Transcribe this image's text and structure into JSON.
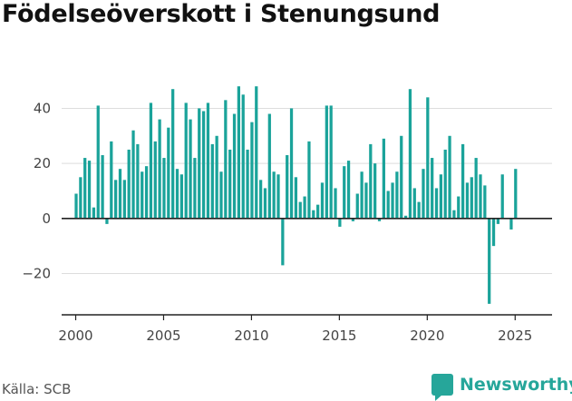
{
  "title": "Födelseöverskott i Stenungsund",
  "source": "Källa: SCB",
  "brand": {
    "name": "Newsworthy",
    "icon": "newsworthy-logo-icon"
  },
  "colors": {
    "bar": "#1aa39a",
    "grid": "#dddddd",
    "axis": "#222222"
  },
  "chart_data": {
    "type": "bar",
    "x_unit": "quarter",
    "title": "Födelseöverskott i Stenungsund",
    "xlabel": "",
    "ylabel": "",
    "ylim": [
      -35,
      53
    ],
    "xlim": [
      1999.2,
      2027.1
    ],
    "grid": true,
    "y_ticks": [
      -20,
      0,
      20,
      40
    ],
    "x_ticks": [
      2000,
      2005,
      2010,
      2015,
      2020,
      2025
    ],
    "categories": [
      "2000 K1",
      "2000 K2",
      "2000 K3",
      "2000 K4",
      "2001 K1",
      "2001 K2",
      "2001 K3",
      "2001 K4",
      "2002 K1",
      "2002 K2",
      "2002 K3",
      "2002 K4",
      "2003 K1",
      "2003 K2",
      "2003 K3",
      "2003 K4",
      "2004 K1",
      "2004 K2",
      "2004 K3",
      "2004 K4",
      "2005 K1",
      "2005 K2",
      "2005 K3",
      "2005 K4",
      "2006 K1",
      "2006 K2",
      "2006 K3",
      "2006 K4",
      "2007 K1",
      "2007 K2",
      "2007 K3",
      "2007 K4",
      "2008 K1",
      "2008 K2",
      "2008 K3",
      "2008 K4",
      "2009 K1",
      "2009 K2",
      "2009 K3",
      "2009 K4",
      "2010 K1",
      "2010 K2",
      "2010 K3",
      "2010 K4",
      "2011 K1",
      "2011 K2",
      "2011 K3",
      "2011 K4",
      "2012 K1",
      "2012 K2",
      "2012 K3",
      "2012 K4",
      "2013 K1",
      "2013 K2",
      "2013 K3",
      "2013 K4",
      "2014 K1",
      "2014 K2",
      "2014 K3",
      "2014 K4",
      "2015 K1",
      "2015 K2",
      "2015 K3",
      "2015 K4",
      "2016 K1",
      "2016 K2",
      "2016 K3",
      "2016 K4",
      "2017 K1",
      "2017 K2",
      "2017 K3",
      "2017 K4",
      "2018 K1",
      "2018 K2",
      "2018 K3",
      "2018 K4",
      "2019 K1",
      "2019 K2",
      "2019 K3",
      "2019 K4",
      "2020 K1",
      "2020 K2",
      "2020 K3",
      "2020 K4",
      "2021 K1",
      "2021 K2",
      "2021 K3",
      "2021 K4",
      "2022 K1",
      "2022 K2",
      "2022 K3",
      "2022 K4",
      "2023 K1",
      "2023 K2",
      "2023 K3",
      "2023 K4",
      "2024 K1",
      "2024 K2",
      "2024 K3",
      "2024 K4",
      "2025 K1",
      "2025 K2"
    ],
    "values": [
      9,
      15,
      22,
      21,
      4,
      41,
      23,
      -2,
      28,
      14,
      18,
      14,
      25,
      32,
      27,
      17,
      19,
      42,
      28,
      36,
      22,
      33,
      47,
      18,
      16,
      42,
      36,
      22,
      40,
      39,
      42,
      27,
      30,
      17,
      43,
      25,
      38,
      48,
      45,
      25,
      35,
      48,
      14,
      11,
      38,
      17,
      16,
      -17,
      23,
      40,
      15,
      6,
      8,
      28,
      3,
      5,
      13,
      41,
      41,
      11,
      -3,
      19,
      21,
      -1,
      9,
      17,
      13,
      27,
      20,
      -1,
      29,
      10,
      13,
      17,
      30,
      1,
      47,
      11,
      6,
      18,
      44,
      22,
      11,
      16,
      25,
      30,
      3,
      8,
      27,
      13,
      15,
      22,
      16,
      12,
      -31,
      -10,
      -2,
      16,
      0,
      -4,
      18,
      0
    ]
  }
}
